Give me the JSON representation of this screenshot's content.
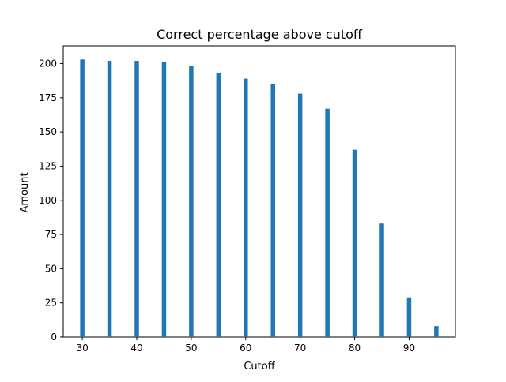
{
  "chart_data": {
    "type": "bar",
    "title": "Correct percentage above cutoff",
    "xlabel": "Cutoff",
    "ylabel": "Amount",
    "x": [
      30,
      35,
      40,
      45,
      50,
      55,
      60,
      65,
      70,
      75,
      80,
      85,
      90,
      95
    ],
    "values": [
      203,
      202,
      202,
      201,
      198,
      193,
      189,
      185,
      178,
      167,
      137,
      83,
      29,
      8
    ],
    "xlim": [
      26.5,
      98.5
    ],
    "ylim": [
      0,
      213
    ],
    "xticks": [
      30,
      40,
      50,
      60,
      70,
      80,
      90
    ],
    "xtick_labels": [
      "30",
      "40",
      "50",
      "60",
      "70",
      "80",
      "90"
    ],
    "yticks": [
      0,
      25,
      50,
      75,
      100,
      125,
      150,
      175,
      200
    ],
    "ytick_labels": [
      "0",
      "25",
      "50",
      "75",
      "100",
      "125",
      "150",
      "175",
      "200"
    ],
    "bar_width": 0.8,
    "bar_color": "#1f77b4",
    "grid": false,
    "legend": "none"
  }
}
